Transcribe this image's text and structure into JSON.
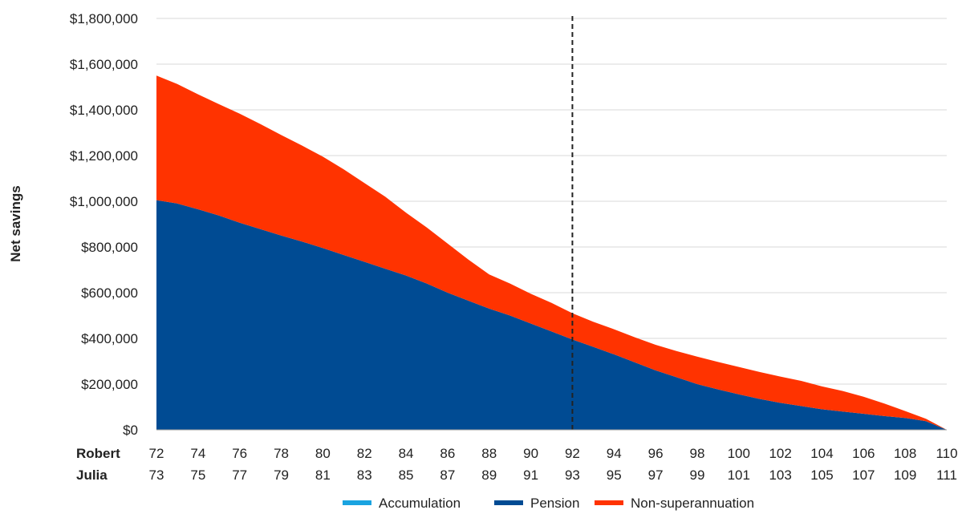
{
  "chart_data": {
    "type": "area",
    "stacked": true,
    "ylabel": "Net savings",
    "ylim": [
      0,
      1800000
    ],
    "y_ticks": [
      0,
      200000,
      400000,
      600000,
      800000,
      1000000,
      1200000,
      1400000,
      1600000,
      1800000
    ],
    "y_tick_labels": [
      "$0",
      "$200,000",
      "$400,000",
      "$600,000",
      "$800,000",
      "$1,000,000",
      "$1,200,000",
      "$1,400,000",
      "$1,600,000",
      "$1,800,000"
    ],
    "x_rows": [
      {
        "name": "Robert",
        "labels": [
          "72",
          "74",
          "76",
          "78",
          "80",
          "82",
          "84",
          "86",
          "88",
          "90",
          "92",
          "94",
          "96",
          "98",
          "100",
          "102",
          "104",
          "106",
          "108",
          "110"
        ]
      },
      {
        "name": "Julia",
        "labels": [
          "73",
          "75",
          "77",
          "79",
          "81",
          "83",
          "85",
          "87",
          "89",
          "91",
          "93",
          "95",
          "97",
          "99",
          "101",
          "103",
          "105",
          "107",
          "109",
          "111"
        ]
      }
    ],
    "x": [
      72,
      73,
      74,
      75,
      76,
      77,
      78,
      79,
      80,
      81,
      82,
      83,
      84,
      85,
      86,
      87,
      88,
      89,
      90,
      91,
      92,
      93,
      94,
      95,
      96,
      97,
      98,
      99,
      100,
      101,
      102,
      103,
      104,
      105,
      106,
      107,
      108,
      109,
      110
    ],
    "x_range": [
      72,
      110
    ],
    "reference_line": {
      "x": 92,
      "style": "dashed"
    },
    "grid": "horizontal",
    "legend_position": "bottom",
    "series": [
      {
        "name": "Accumulation",
        "color": "#1aa3e0",
        "values": [
          0,
          0,
          0,
          0,
          0,
          0,
          0,
          0,
          0,
          0,
          0,
          0,
          0,
          0,
          0,
          0,
          0,
          0,
          0,
          0,
          0,
          0,
          0,
          0,
          0,
          0,
          0,
          0,
          0,
          0,
          0,
          0,
          0,
          0,
          0,
          0,
          0,
          0,
          0
        ]
      },
      {
        "name": "Pension",
        "color": "#004b93",
        "values": [
          1005000,
          990000,
          965000,
          938000,
          906000,
          878000,
          850000,
          824000,
          795000,
          765000,
          735000,
          705000,
          675000,
          640000,
          600000,
          565000,
          530000,
          500000,
          465000,
          430000,
          395000,
          363000,
          330000,
          295000,
          260000,
          230000,
          200000,
          177000,
          155000,
          135000,
          118000,
          104000,
          90000,
          80000,
          70000,
          60000,
          52000,
          38000,
          0
        ]
      },
      {
        "name": "Non-superannuation",
        "color": "#ff3300",
        "values": [
          545000,
          523000,
          503000,
          487000,
          477000,
          460000,
          440000,
          420000,
          400000,
          375000,
          345000,
          315000,
          275000,
          245000,
          215000,
          180000,
          150000,
          140000,
          130000,
          125000,
          115000,
          110000,
          110000,
          110000,
          112000,
          115000,
          120000,
          120000,
          120000,
          118000,
          115000,
          110000,
          100000,
          90000,
          75000,
          55000,
          30000,
          10000,
          0
        ]
      }
    ]
  }
}
